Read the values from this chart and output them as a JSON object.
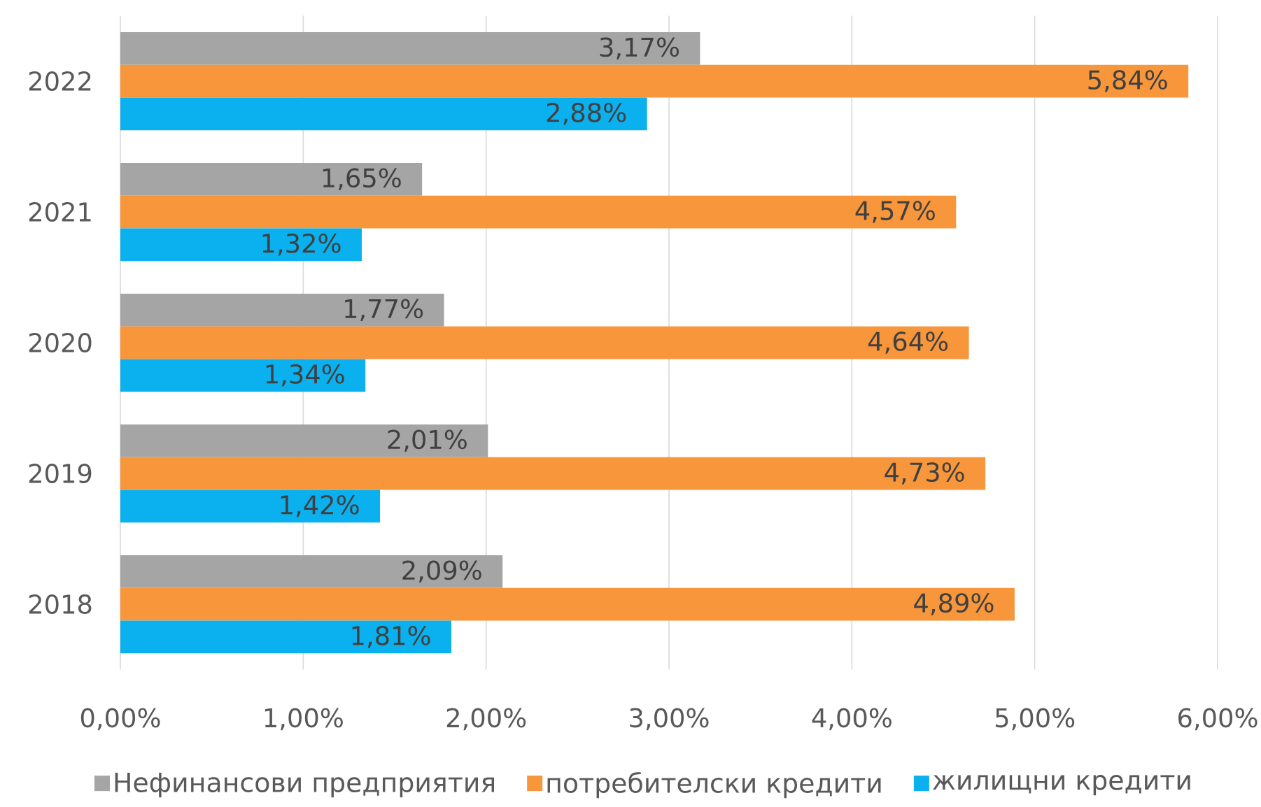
{
  "chart_data": {
    "type": "bar",
    "orientation": "horizontal",
    "categories": [
      "2022",
      "2021",
      "2020",
      "2019",
      "2018"
    ],
    "series": [
      {
        "name": "Нефинансови предприятия",
        "color": "#a5a5a5",
        "values": [
          3.17,
          1.65,
          1.77,
          2.01,
          2.09
        ],
        "value_labels": [
          "3,17%",
          "1,65%",
          "1,77%",
          "2,01%",
          "2,09%"
        ]
      },
      {
        "name": "потребителски кредити",
        "color": "#f7963b",
        "values": [
          5.84,
          4.57,
          4.64,
          4.73,
          4.89
        ],
        "value_labels": [
          "5,84%",
          "4,57%",
          "4,64%",
          "4,73%",
          "4,89%"
        ]
      },
      {
        "name": "жилищни кредити",
        "color": "#0bb0ee",
        "values": [
          2.88,
          1.32,
          1.34,
          1.42,
          1.81
        ],
        "value_labels": [
          "2,88%",
          "1,32%",
          "1,34%",
          "1,42%",
          "1,81%"
        ]
      }
    ],
    "xlim": [
      0,
      6
    ],
    "xticks": [
      {
        "value": 0,
        "label": "0,00%"
      },
      {
        "value": 1,
        "label": "1,00%"
      },
      {
        "value": 2,
        "label": "2,00%"
      },
      {
        "value": 3,
        "label": "3,00%"
      },
      {
        "value": 4,
        "label": "4,00%"
      },
      {
        "value": 5,
        "label": "5,00%"
      },
      {
        "value": 6,
        "label": "6,00%"
      }
    ],
    "grid": "x",
    "legend": "bottom"
  }
}
